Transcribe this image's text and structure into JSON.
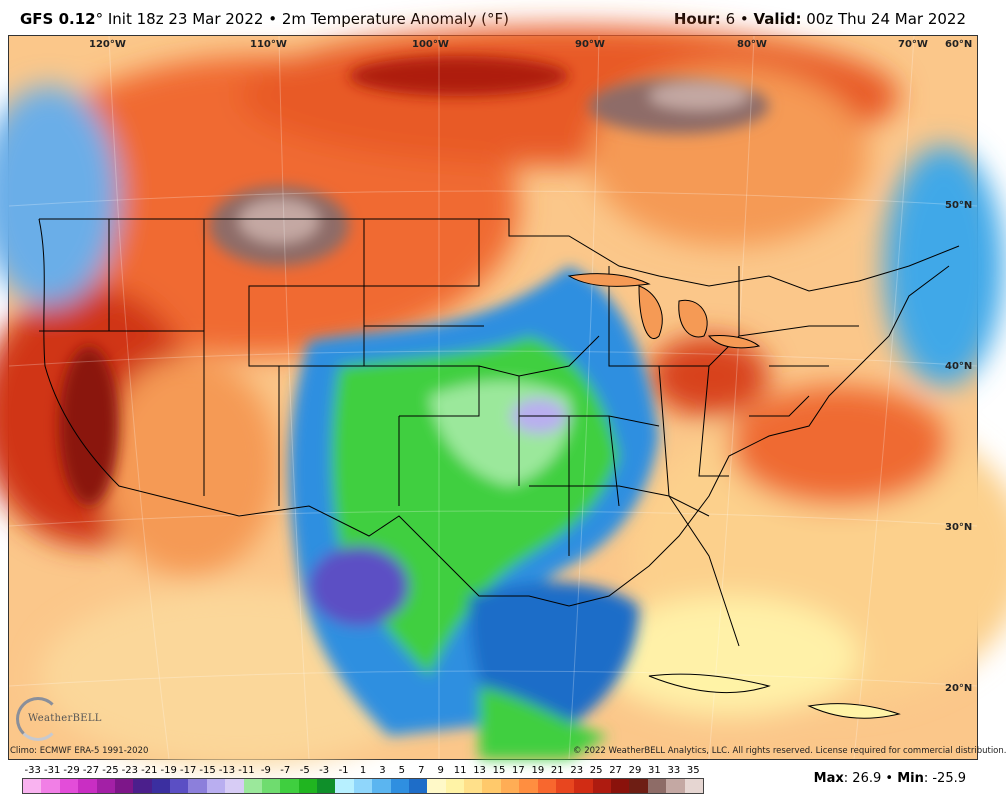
{
  "header": {
    "model": "GFS 0.12",
    "degree": "°",
    "init": " Init 18z 23 Mar 2022",
    "bullet": " • ",
    "product": "2m Temperature Anomaly (°F)",
    "hour_label": "Hour:",
    "hour_value": " 6",
    "valid_label": "Valid:",
    "valid_value": " 00z Thu 24 Mar 2022"
  },
  "map": {
    "longitude_labels": [
      "120°W",
      "110°W",
      "100°W",
      "90°W",
      "80°W",
      "70°W"
    ],
    "latitude_labels": [
      "60°N",
      "50°N",
      "40°N",
      "30°N",
      "20°N"
    ],
    "logo_text": "WeatherBELL"
  },
  "footer": {
    "climo": "Climo: ECMWF ERA-5 1991-2020",
    "copyright": "© 2022 WeatherBELL Analytics, LLC. All rights reserved. License required for commercial distribution."
  },
  "legend": {
    "labels": [
      "-33",
      "-31",
      "-29",
      "-27",
      "-25",
      "-23",
      "-21",
      "-19",
      "-17",
      "-15",
      "-13",
      "-11",
      "-9",
      "-7",
      "-5",
      "-3",
      "-1",
      "1",
      "3",
      "5",
      "7",
      "9",
      "11",
      "13",
      "15",
      "17",
      "19",
      "21",
      "23",
      "25",
      "27",
      "29",
      "31",
      "33",
      "35"
    ],
    "colors": [
      "#f9b3f0",
      "#f17fe6",
      "#e34dd9",
      "#c92ec3",
      "#a320a6",
      "#7d1689",
      "#4b1f8c",
      "#3b2fa0",
      "#5b4fc4",
      "#8c7fdb",
      "#b9aef0",
      "#d7ccf5",
      "#9be89b",
      "#6fdc6f",
      "#3fcf3f",
      "#20b520",
      "#0f8f2a",
      "#b7f0ff",
      "#8fd6fb",
      "#5bb5f0",
      "#2f8fe0",
      "#1e6dc8",
      "#fff9c8",
      "#fff3a6",
      "#ffe08a",
      "#ffc96b",
      "#ffad55",
      "#ff8e40",
      "#f8672e",
      "#e8461f",
      "#d12c14",
      "#ae1b10",
      "#8a120b",
      "#6e1e14",
      "#8e6c67",
      "#c4a8a3",
      "#e6d6d2"
    ],
    "max_label": "Max",
    "max_value": ": 26.9",
    "bullet": " • ",
    "min_label": "Min",
    "min_value": ": -25.9"
  }
}
